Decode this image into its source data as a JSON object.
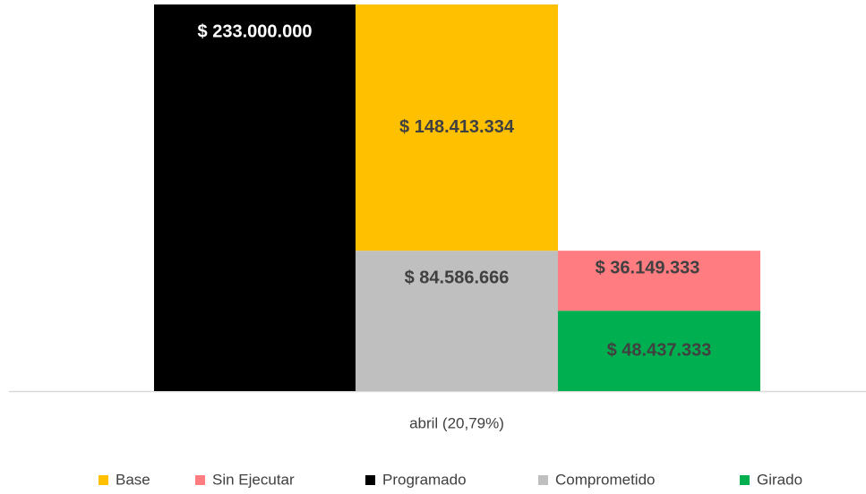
{
  "chart_data": {
    "type": "bar",
    "categories": [
      "abril (20,79%)"
    ],
    "ylim": [
      0,
      233000000
    ],
    "series": [
      {
        "name": "Base",
        "color": "#ffc000",
        "values": [
          148413334
        ],
        "value_labels": [
          "$ 148.413.334"
        ]
      },
      {
        "name": "Sin Ejecutar",
        "color": "#ff7c80",
        "values": [
          36149333
        ],
        "value_labels": [
          "$ 36.149.333"
        ]
      },
      {
        "name": "Programado",
        "color": "#000000",
        "values": [
          233000000
        ],
        "value_labels": [
          "$ 233.000.000"
        ]
      },
      {
        "name": "Comprometido",
        "color": "#bfbfbf",
        "values": [
          84586666
        ],
        "value_labels": [
          "$ 84.586.666"
        ]
      },
      {
        "name": "Girado",
        "color": "#00b050",
        "values": [
          48437333
        ],
        "value_labels": [
          "$ 48.437.333"
        ]
      }
    ]
  }
}
